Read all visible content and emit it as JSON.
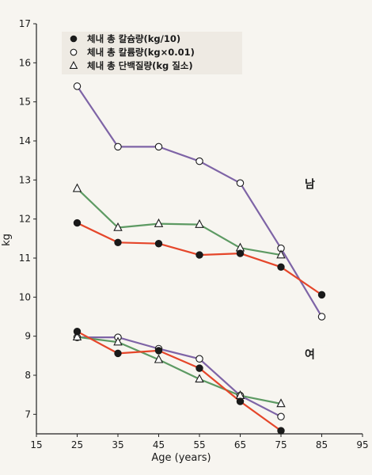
{
  "chart_data": {
    "type": "line",
    "xlabel": "Age (years)",
    "ylabel": "kg",
    "xlim": [
      15,
      95
    ],
    "ylim": [
      6.5,
      17
    ],
    "x_ticks": [
      "15",
      "25",
      "35",
      "45",
      "55",
      "65",
      "75",
      "85",
      "95"
    ],
    "y_ticks": [
      "7",
      "8",
      "9",
      "10",
      "11",
      "12",
      "13",
      "14",
      "15",
      "16",
      "17"
    ],
    "legend_position": "top-left",
    "legend": [
      {
        "label": "체내 총 칼슘량(kg/10)",
        "marker": "filled-circle"
      },
      {
        "label": "체내 총 칼륨량(kg×0.01)",
        "marker": "open-circle"
      },
      {
        "label": "체내 총 단백질량(kg 질소)",
        "marker": "open-triangle"
      }
    ],
    "group_labels": [
      {
        "text": "남",
        "x": 82,
        "y": 12.85
      },
      {
        "text": "여",
        "x": 82,
        "y": 8.5
      }
    ],
    "series": [
      {
        "group": "남",
        "series_ref": "체내 총 칼륨량(kg×0.01)",
        "marker": "circle-open",
        "color": "#7e64a6",
        "x": [
          25,
          35,
          45,
          55,
          65,
          75,
          85
        ],
        "y": [
          15.4,
          13.85,
          13.85,
          13.48,
          12.92,
          11.25,
          9.5
        ]
      },
      {
        "group": "남",
        "series_ref": "체내 총 단백질량(kg 질소)",
        "marker": "triangle-open",
        "color": "#5d9a63",
        "x": [
          25,
          35,
          45,
          55,
          65,
          75
        ],
        "y": [
          12.78,
          11.78,
          11.88,
          11.86,
          11.26,
          11.08
        ]
      },
      {
        "group": "남",
        "series_ref": "체내 총 칼슘량(kg/10)",
        "marker": "circle-filled",
        "color": "#e5462a",
        "x": [
          25,
          35,
          45,
          55,
          65,
          75,
          85
        ],
        "y": [
          11.9,
          11.4,
          11.37,
          11.08,
          11.12,
          10.77,
          10.06
        ]
      },
      {
        "group": "여",
        "series_ref": "체내 총 칼륨량(kg×0.01)",
        "marker": "circle-open",
        "color": "#7e64a6",
        "x": [
          25,
          35,
          45,
          55,
          65,
          75
        ],
        "y": [
          8.97,
          8.97,
          8.68,
          8.42,
          7.48,
          6.94
        ]
      },
      {
        "group": "여",
        "series_ref": "체내 총 단백질량(kg 질소)",
        "marker": "triangle-open",
        "color": "#5d9a63",
        "x": [
          25,
          35,
          45,
          55,
          65,
          75
        ],
        "y": [
          8.98,
          8.85,
          8.4,
          7.9,
          7.48,
          7.27
        ]
      },
      {
        "group": "여",
        "series_ref": "체내 총 칼슘량(kg/10)",
        "marker": "circle-filled",
        "color": "#e5462a",
        "x": [
          25,
          35,
          45,
          55,
          65,
          75
        ],
        "y": [
          9.12,
          8.56,
          8.63,
          8.18,
          7.33,
          6.58
        ]
      }
    ]
  }
}
